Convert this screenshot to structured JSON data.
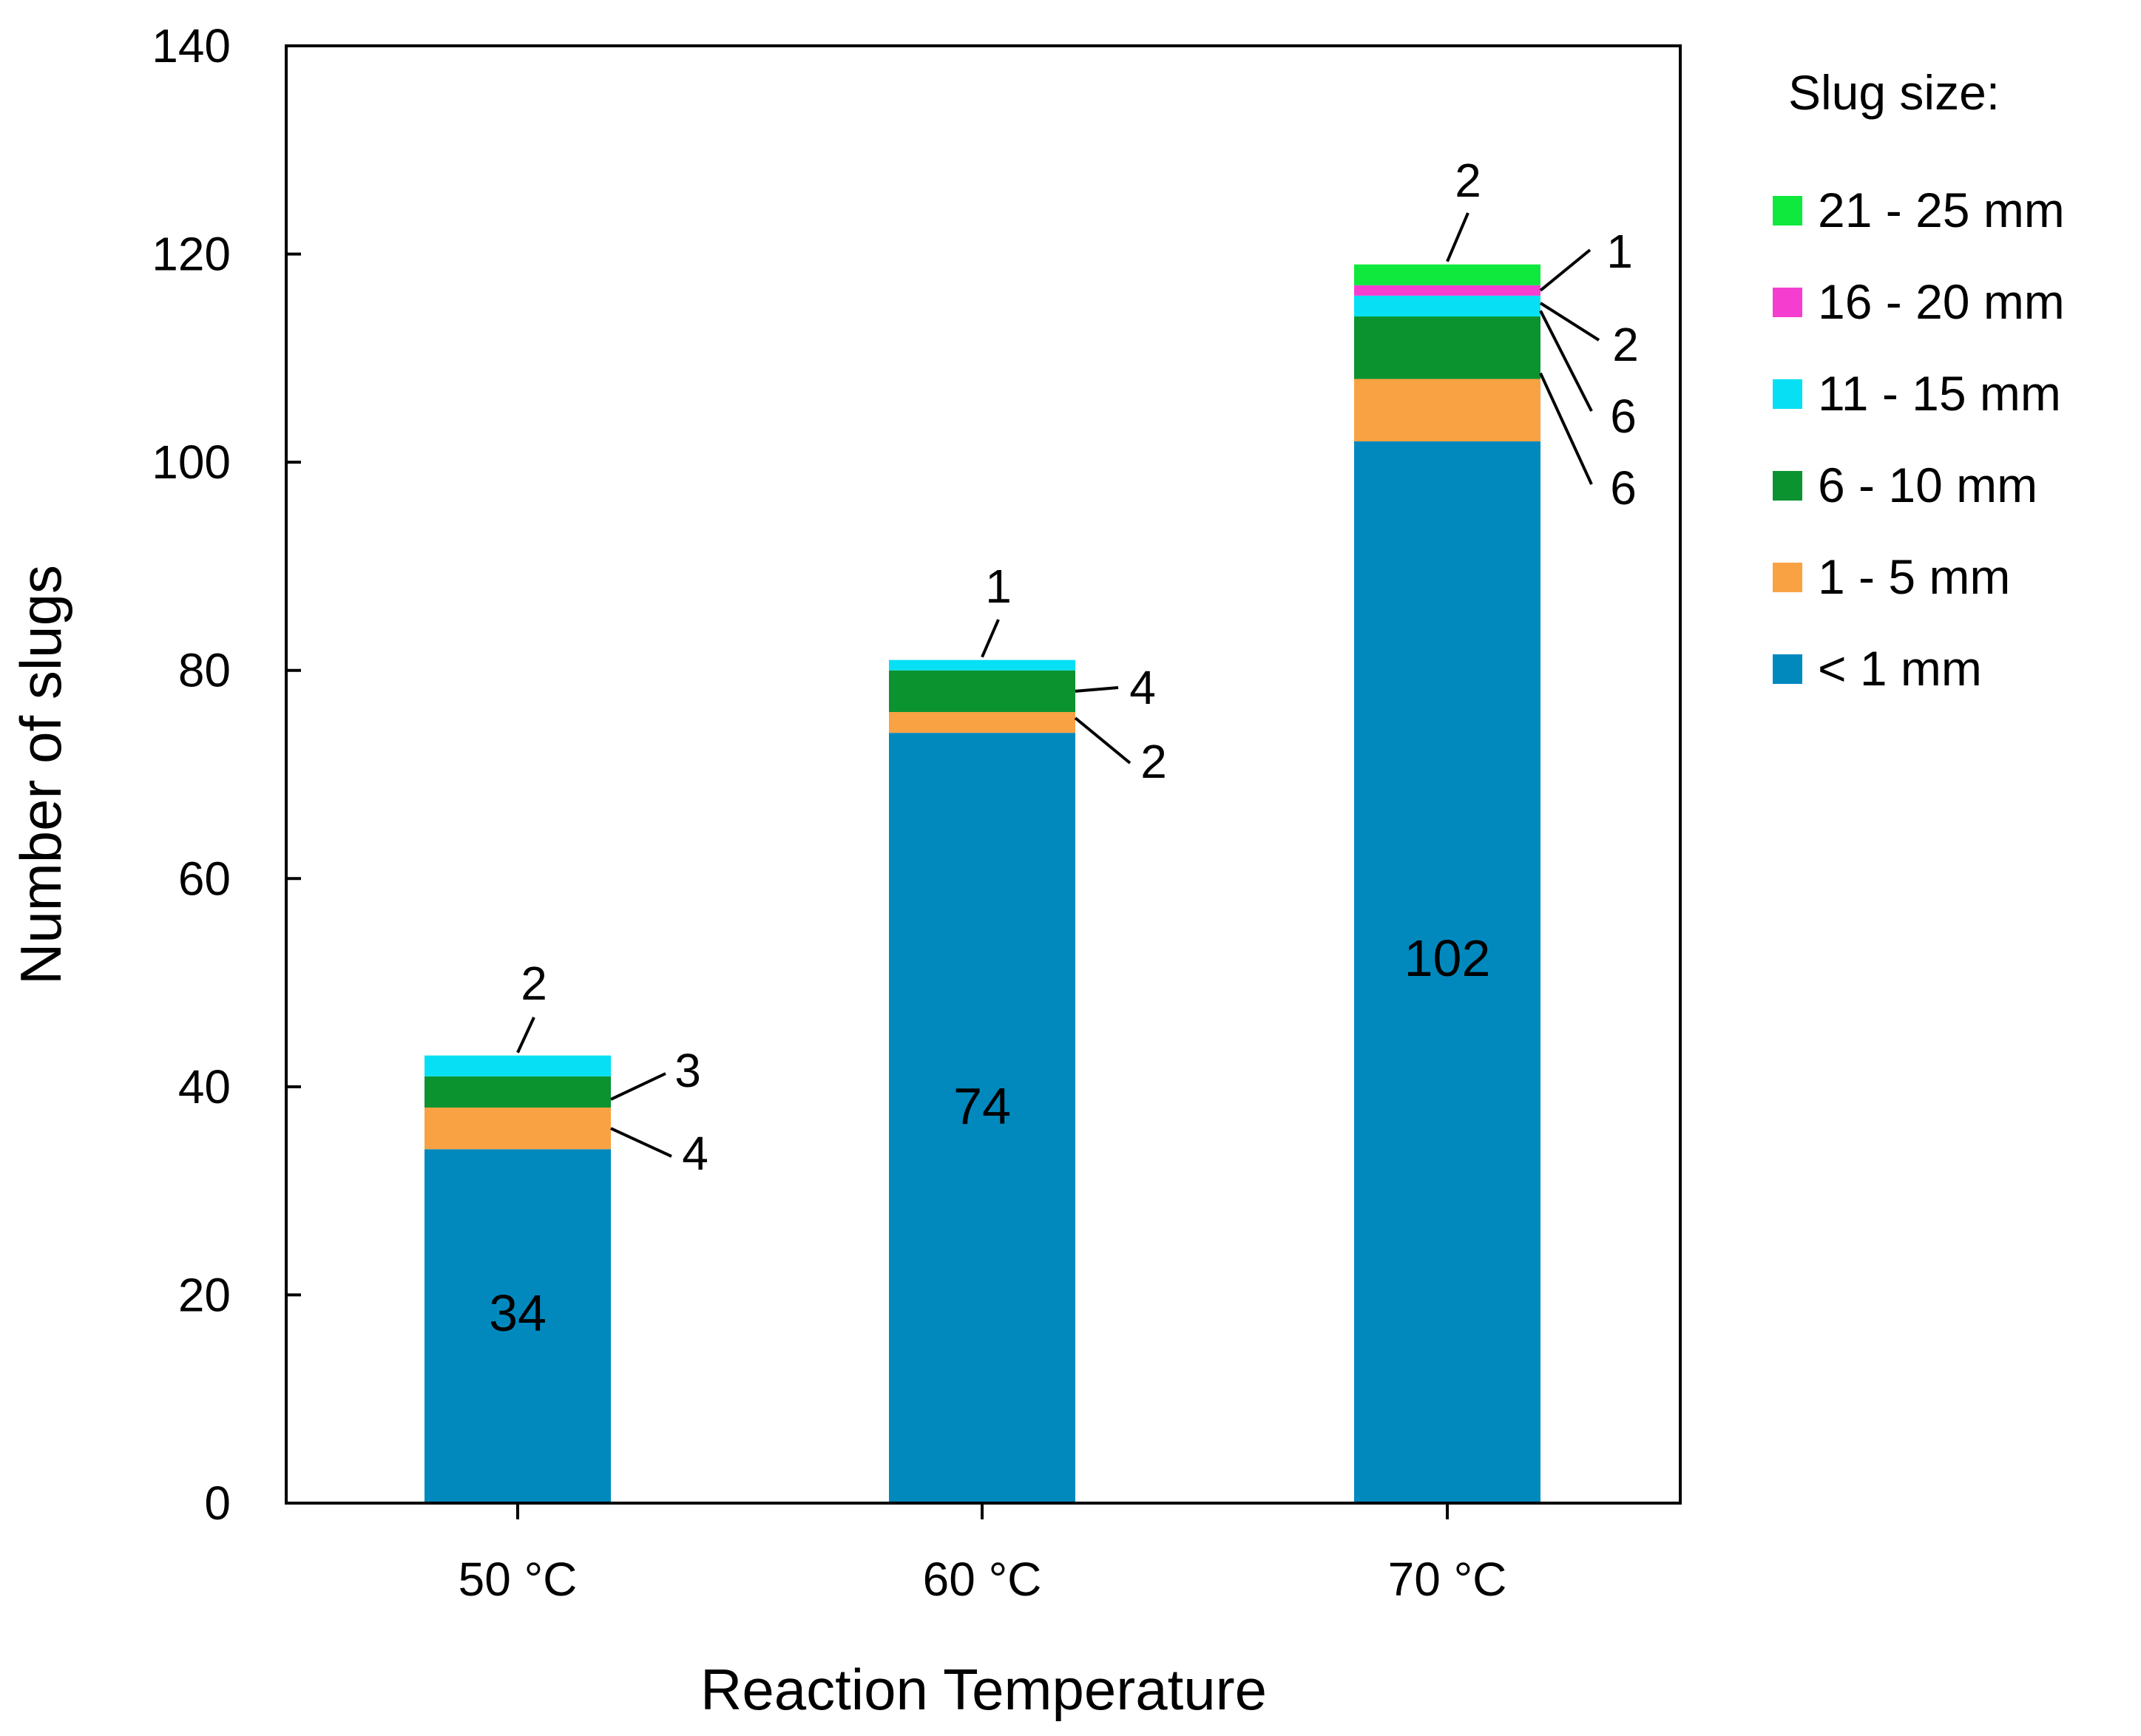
{
  "chart_data": {
    "type": "bar",
    "stacked": true,
    "title": "",
    "xlabel": "Reaction Temperature",
    "ylabel": "Number of slugs",
    "ylim": [
      0,
      140
    ],
    "yticks": [
      0,
      20,
      40,
      60,
      80,
      100,
      120,
      140
    ],
    "grid": false,
    "categories": [
      "50 °C",
      "60 °C",
      "70 °C"
    ],
    "legend": {
      "title": "Slug size:",
      "placement": "right"
    },
    "series": [
      {
        "name": "< 1 mm",
        "color": "#0189BE",
        "values": [
          34,
          74,
          102
        ]
      },
      {
        "name": "1 - 5 mm",
        "color": "#F9A243",
        "values": [
          4,
          2,
          6
        ]
      },
      {
        "name": "6 - 10 mm",
        "color": "#0B9330",
        "values": [
          3,
          4,
          6
        ]
      },
      {
        "name": "11 - 15 mm",
        "color": "#07E0F4",
        "values": [
          2,
          1,
          2
        ]
      },
      {
        "name": "16 - 20 mm",
        "color": "#F53ED0",
        "values": [
          0,
          0,
          1
        ]
      },
      {
        "name": "21 - 25 mm",
        "color": "#0FE83C",
        "values": [
          0,
          0,
          2
        ]
      }
    ],
    "data_labels": [
      [
        "34",
        "4",
        "3",
        "2",
        "",
        ""
      ],
      [
        "74",
        "2",
        "4",
        "1",
        "",
        ""
      ],
      [
        "102",
        "6",
        "6",
        "2",
        "1",
        "2"
      ]
    ]
  }
}
